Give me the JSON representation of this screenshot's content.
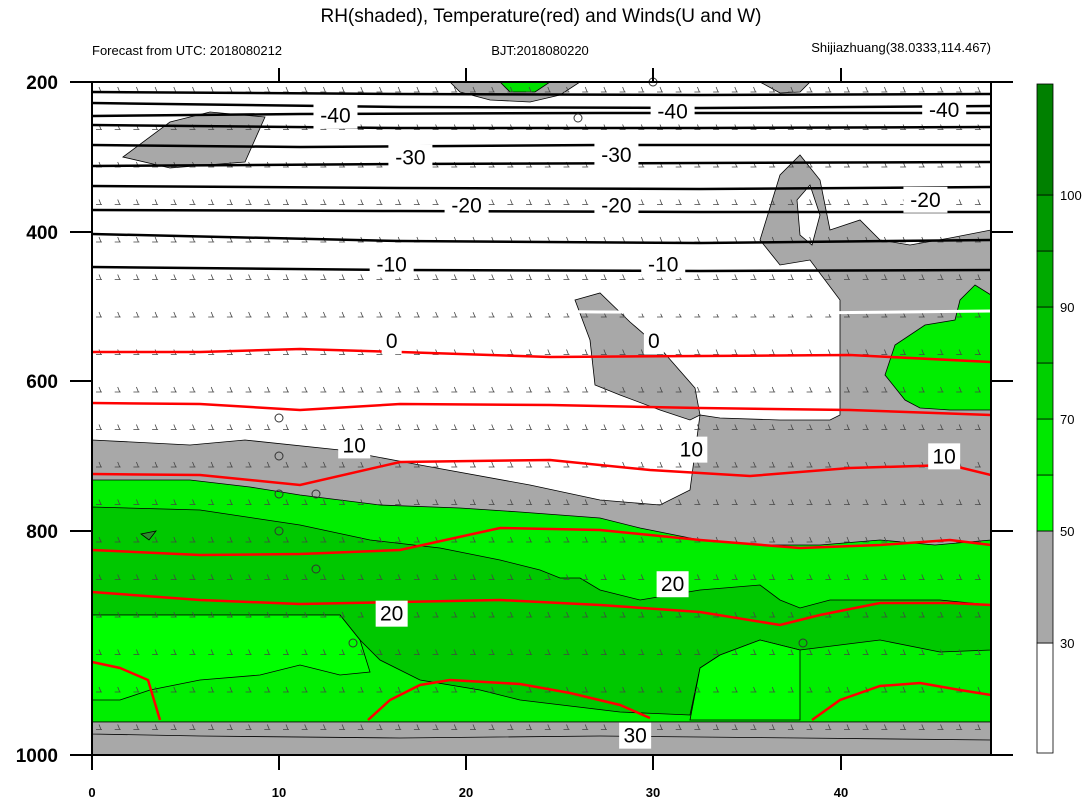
{
  "chart_data": {
    "type": "heatmap",
    "title": "RH(shaded), Temperature(red) and Winds(U and W)",
    "subtitle_left": "Forecast from UTC: 2018080212",
    "subtitle_center": "BJT:2018080220",
    "subtitle_right": "Shijiazhuang(38.0333,114.467)",
    "x_ticks": [
      "0",
      "10",
      "20",
      "30",
      "40"
    ],
    "y_ticks": [
      "200",
      "400",
      "600",
      "800",
      "1000"
    ],
    "xlim": [
      0,
      48
    ],
    "ylim": [
      1000,
      200
    ],
    "colorbar": {
      "labels": [
        "30",
        "50",
        "70",
        "90",
        "100"
      ],
      "colors": [
        "#ffffff",
        "#a8a8a8",
        "#00ff00",
        "#00e000",
        "#00c000",
        "#00a000",
        "#008000"
      ]
    },
    "temperature_contours": [
      {
        "value": -40,
        "pressure": 240,
        "color": "#000000"
      },
      {
        "value": -30,
        "pressure": 290,
        "color": "#000000"
      },
      {
        "value": -20,
        "pressure": 345,
        "color": "#000000"
      },
      {
        "value": -10,
        "pressure": 415,
        "color": "#000000"
      },
      {
        "value": 0,
        "pressure": 505,
        "color": "#ffffff"
      },
      {
        "value": 10,
        "pressure": 635,
        "color": "#ff0000"
      },
      {
        "value": 20,
        "pressure": 810,
        "color": "#ff0000"
      },
      {
        "value": 30,
        "pressure": 960,
        "color": "#ff0000"
      }
    ],
    "temperature_labels": [
      {
        "text": "-40",
        "x": 13,
        "pressure": 240
      },
      {
        "text": "-40",
        "x": 31,
        "pressure": 235
      },
      {
        "text": "-40",
        "x": 45.5,
        "pressure": 233
      },
      {
        "text": "-30",
        "x": 17,
        "pressure": 290
      },
      {
        "text": "-30",
        "x": 28,
        "pressure": 287
      },
      {
        "text": "-20",
        "x": 20,
        "pressure": 347
      },
      {
        "text": "-20",
        "x": 28,
        "pressure": 347
      },
      {
        "text": "-20",
        "x": 44.5,
        "pressure": 340
      },
      {
        "text": "-10",
        "x": 16,
        "pressure": 417
      },
      {
        "text": "-10",
        "x": 30.5,
        "pressure": 417
      },
      {
        "text": "0",
        "x": 16,
        "pressure": 508
      },
      {
        "text": "0",
        "x": 30,
        "pressure": 508
      },
      {
        "text": "10",
        "x": 14,
        "pressure": 632
      },
      {
        "text": "10",
        "x": 32,
        "pressure": 637
      },
      {
        "text": "10",
        "x": 45.5,
        "pressure": 645
      },
      {
        "text": "20",
        "x": 16,
        "pressure": 832
      },
      {
        "text": "20",
        "x": 31,
        "pressure": 797
      },
      {
        "text": "30",
        "x": 29,
        "pressure": 977
      }
    ]
  }
}
